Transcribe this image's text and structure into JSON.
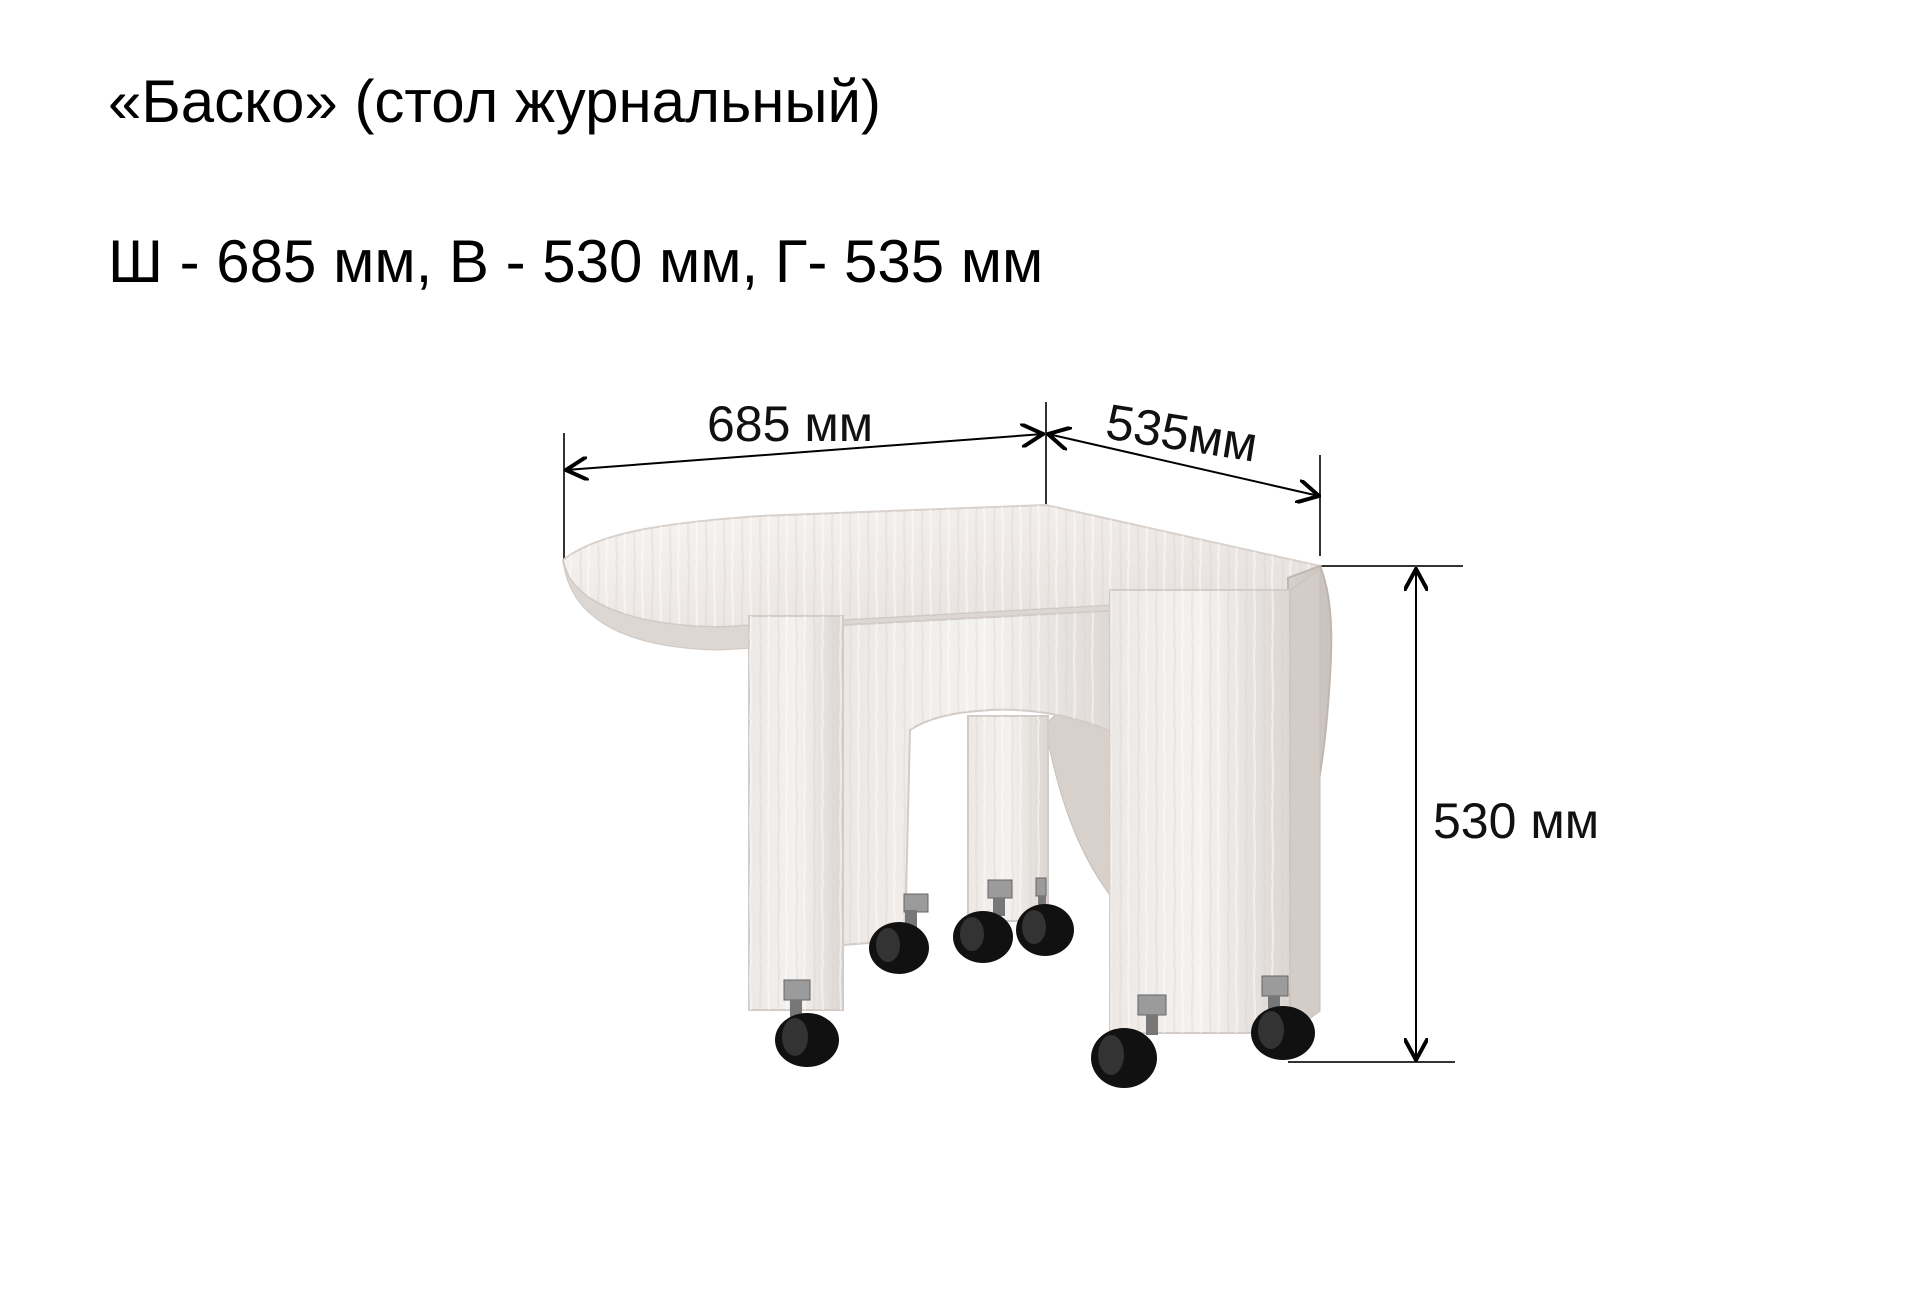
{
  "product": {
    "title": "«Баско» (стол журнальный)",
    "dimensions_line": "Ш - 685 мм, В - 530 мм, Г- 535 мм"
  },
  "dimensions": {
    "width_label": "685 мм",
    "depth_label": "535мм",
    "height_label": "530 мм"
  }
}
